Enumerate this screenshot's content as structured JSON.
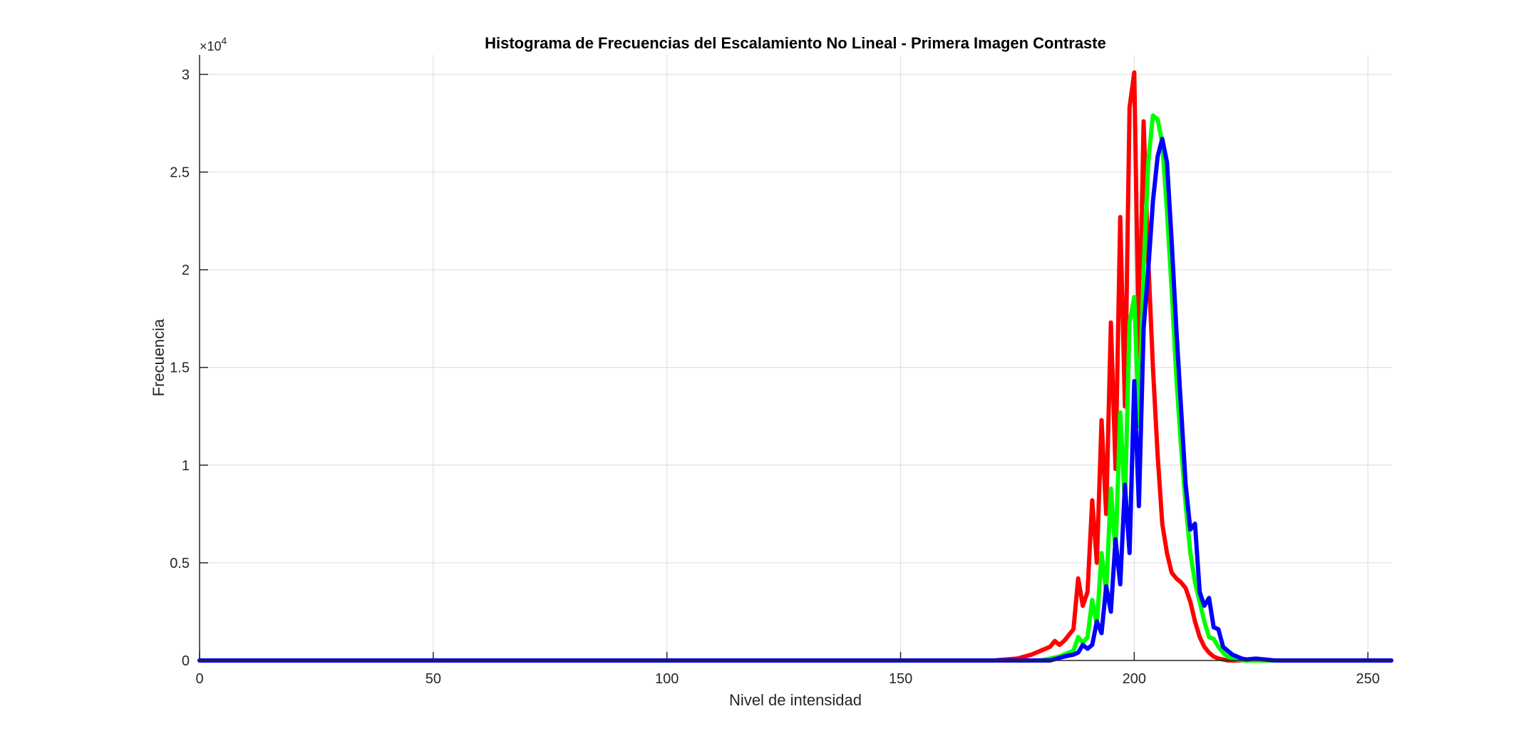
{
  "chart_data": {
    "type": "line",
    "title": "Histograma de Frecuencias del Escalamiento No Lineal - Primera Imagen Contraste",
    "xlabel": "Nivel de intensidad",
    "ylabel": "Frecuencia",
    "xlim": [
      0,
      255
    ],
    "ylim": [
      0,
      31000
    ],
    "y_exponent_label": "×10",
    "y_exponent_power": "4",
    "x_ticks": [
      0,
      50,
      100,
      150,
      200,
      250
    ],
    "x_tick_labels": [
      "0",
      "50",
      "100",
      "150",
      "200",
      "250"
    ],
    "y_ticks": [
      0,
      5000,
      10000,
      15000,
      20000,
      25000,
      30000
    ],
    "y_tick_labels": [
      "0",
      "0.5",
      "1",
      "1.5",
      "2",
      "2.5",
      "3"
    ],
    "grid": true,
    "series": [
      {
        "color": "#ff0000",
        "x": [
          0,
          170,
          175,
          178,
          180,
          182,
          183,
          184,
          185,
          186,
          187,
          188,
          189,
          190,
          191,
          192,
          193,
          194,
          195,
          196,
          197,
          198,
          199,
          200,
          201,
          202,
          203,
          204,
          205,
          206,
          207,
          208,
          209,
          210,
          211,
          212,
          213,
          214,
          215,
          216,
          217,
          218,
          219,
          220,
          222,
          225,
          255
        ],
        "y": [
          0,
          0,
          100,
          300,
          500,
          700,
          1000,
          800,
          1000,
          1300,
          1600,
          4200,
          2800,
          3500,
          8200,
          5000,
          12300,
          7500,
          17300,
          9800,
          22700,
          13000,
          28300,
          30100,
          15500,
          27600,
          20500,
          15000,
          10500,
          7000,
          5500,
          4500,
          4200,
          4000,
          3700,
          3000,
          2000,
          1200,
          700,
          400,
          200,
          100,
          50,
          0,
          0,
          0,
          0
        ]
      },
      {
        "color": "#00ff00",
        "x": [
          0,
          180,
          184,
          186,
          187,
          188,
          189,
          190,
          191,
          192,
          193,
          194,
          195,
          196,
          197,
          198,
          199,
          200,
          201,
          202,
          203,
          204,
          205,
          206,
          207,
          208,
          209,
          210,
          211,
          212,
          213,
          214,
          215,
          216,
          217,
          218,
          219,
          220,
          221,
          222,
          223,
          225,
          255
        ],
        "y": [
          0,
          0,
          200,
          400,
          500,
          1200,
          900,
          1200,
          3100,
          1800,
          5500,
          3500,
          8800,
          5500,
          12700,
          8000,
          17300,
          18600,
          12000,
          20000,
          25500,
          27900,
          27700,
          26500,
          23000,
          19000,
          14500,
          11000,
          8000,
          5500,
          4000,
          3000,
          2000,
          1200,
          1100,
          700,
          400,
          200,
          100,
          50,
          0,
          0,
          0
        ]
      },
      {
        "color": "#0000ff",
        "x": [
          0,
          182,
          185,
          187,
          188,
          189,
          190,
          191,
          192,
          193,
          194,
          195,
          196,
          197,
          198,
          199,
          200,
          201,
          202,
          203,
          204,
          205,
          206,
          207,
          208,
          209,
          210,
          211,
          212,
          213,
          214,
          215,
          216,
          217,
          218,
          219,
          220,
          221,
          222,
          223,
          224,
          226,
          228,
          230,
          240,
          255
        ],
        "y": [
          0,
          0,
          200,
          300,
          400,
          800,
          600,
          800,
          2000,
          1400,
          3800,
          2500,
          6200,
          3900,
          9000,
          5500,
          14300,
          7900,
          17000,
          20000,
          23500,
          25800,
          26700,
          25500,
          21500,
          17000,
          13000,
          9000,
          6700,
          7000,
          3500,
          2800,
          3200,
          1700,
          1600,
          700,
          500,
          300,
          200,
          100,
          50,
          100,
          50,
          0,
          0,
          0
        ]
      }
    ]
  }
}
